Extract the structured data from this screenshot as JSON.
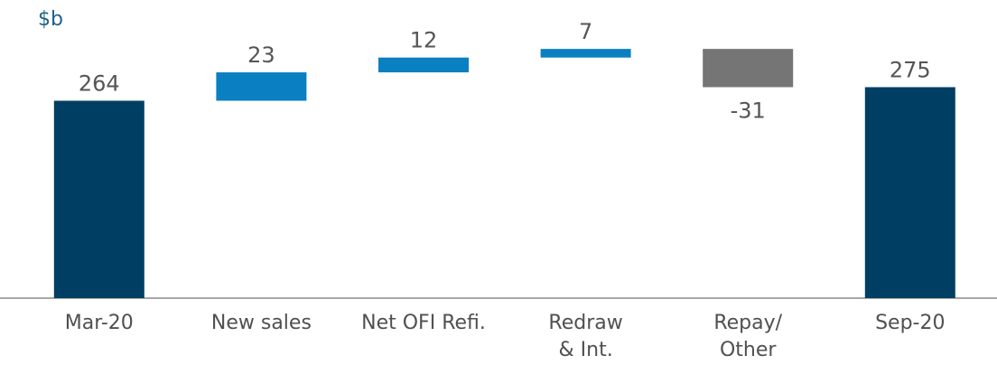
{
  "chart_data": {
    "type": "waterfall",
    "y_label": "$b",
    "categories": [
      "Mar-20",
      "New sales",
      "Net OFI Refi.",
      "Redraw\n& Int.",
      "Repay/\nOther",
      "Sep-20"
    ],
    "values": [
      264,
      23,
      12,
      7,
      -31,
      275
    ],
    "totals": [
      true,
      false,
      false,
      false,
      false,
      true
    ],
    "colors": [
      "#003f63",
      "#0a7fc1",
      "#0a7fc1",
      "#0a7fc1",
      "#757575",
      "#003f63"
    ],
    "ylim": [
      104,
      331
    ]
  }
}
